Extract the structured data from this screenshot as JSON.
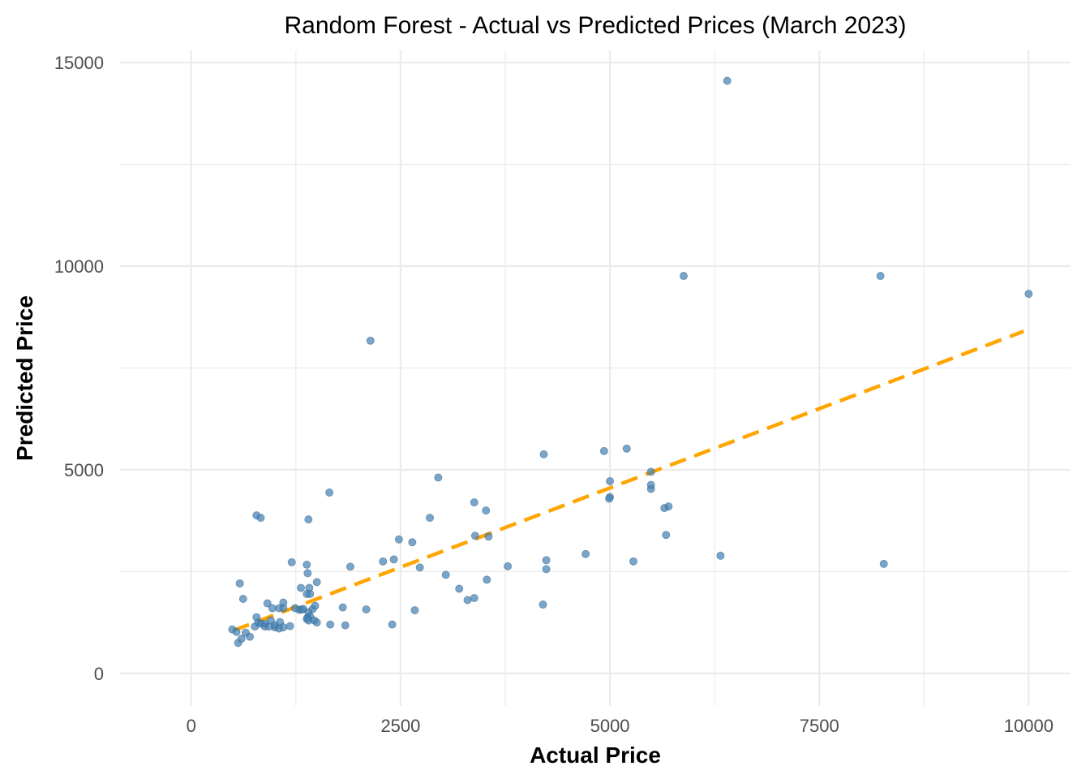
{
  "chart_data": {
    "type": "scatter",
    "title": "Random Forest - Actual vs Predicted Prices (March 2023)",
    "xlabel": "Actual Price",
    "ylabel": "Predicted Price",
    "xlim": [
      -850,
      10500
    ],
    "ylim": [
      -800,
      15300
    ],
    "x_ticks": [
      0,
      2500,
      5000,
      7500,
      10000
    ],
    "x_tick_labels": [
      "0",
      "2500",
      "5000",
      "7500",
      "10000"
    ],
    "y_ticks": [
      0,
      5000,
      10000,
      15000
    ],
    "y_tick_labels": [
      "0",
      "5000",
      "10000",
      "15000"
    ],
    "x_minor_ticks": [
      1250,
      3750,
      6250,
      8750
    ],
    "y_minor_ticks": [
      2500,
      7500,
      12500
    ],
    "grid": true,
    "legend": "none",
    "colors": {
      "points": "#4682b4",
      "trend_line": "#ffa500",
      "grid": "#ebebeb"
    },
    "trend_line": {
      "style": "dashed",
      "from": [
        500,
        1050
      ],
      "to": [
        9940,
        8400
      ]
    },
    "series": [
      {
        "type": "points",
        "x": [
          6400,
          5880,
          8230,
          10000,
          2140,
          4210,
          4930,
          5200,
          2950,
          5490,
          5000,
          5000,
          5490,
          5490,
          3380,
          3520,
          4990,
          5700,
          5650,
          5670,
          3390,
          3550,
          4710,
          4240,
          4240,
          5280,
          6320,
          8270,
          4200,
          1650,
          1400,
          780,
          830,
          2850,
          2480,
          2640,
          2420,
          2290,
          1900,
          1200,
          1380,
          2730,
          3780,
          3040,
          3530,
          3200,
          3380,
          3300,
          2670,
          2090,
          2400,
          580,
          620,
          1310,
          1390,
          1410,
          1380,
          1500,
          1420,
          910,
          970,
          1100,
          1050,
          1450,
          1290,
          1240,
          1320,
          1340,
          1400,
          1480,
          1810,
          780,
          880,
          950,
          1000,
          1060,
          1100,
          1180,
          1390,
          1420,
          1470,
          1500,
          1660,
          1840,
          760,
          800,
          830,
          880,
          930,
          1000,
          1050,
          1100,
          1380,
          1400,
          490,
          560,
          600,
          650,
          700,
          540
        ],
        "y": [
          14550,
          9760,
          9760,
          9320,
          8170,
          5380,
          5460,
          5520,
          4810,
          4950,
          4720,
          4330,
          4530,
          4630,
          4200,
          4000,
          4290,
          4100,
          4060,
          3400,
          3380,
          3360,
          2930,
          2780,
          2560,
          2750,
          2890,
          2690,
          1690,
          4440,
          3780,
          3880,
          3820,
          3820,
          3290,
          3220,
          2800,
          2750,
          2620,
          2730,
          2670,
          2600,
          2630,
          2420,
          2300,
          2080,
          1850,
          1800,
          1550,
          1570,
          1200,
          2210,
          1830,
          2100,
          2460,
          2100,
          1950,
          2240,
          1950,
          1720,
          1600,
          1600,
          1600,
          1580,
          1560,
          1600,
          1570,
          1580,
          1500,
          1660,
          1620,
          1380,
          1220,
          1300,
          1130,
          1260,
          1740,
          1160,
          1370,
          1400,
          1300,
          1250,
          1200,
          1180,
          1150,
          1250,
          1220,
          1150,
          1150,
          1180,
          1100,
          1130,
          1340,
          1300,
          1080,
          750,
          850,
          1000,
          900,
          1020
        ]
      }
    ]
  }
}
